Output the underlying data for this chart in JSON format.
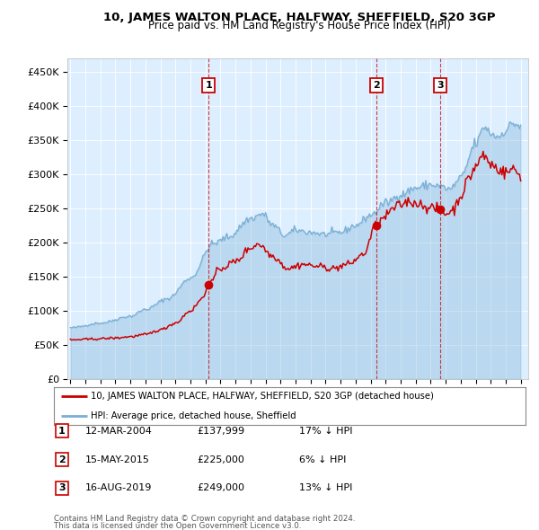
{
  "title": "10, JAMES WALTON PLACE, HALFWAY, SHEFFIELD, S20 3GP",
  "subtitle": "Price paid vs. HM Land Registry's House Price Index (HPI)",
  "legend_line1": "10, JAMES WALTON PLACE, HALFWAY, SHEFFIELD, S20 3GP (detached house)",
  "legend_line2": "HPI: Average price, detached house, Sheffield",
  "transactions": [
    {
      "num": 1,
      "date": "12-MAR-2004",
      "price": 137999,
      "pct": "17%",
      "dir": "↓"
    },
    {
      "num": 2,
      "date": "15-MAY-2015",
      "price": 225000,
      "pct": "6%",
      "dir": "↓"
    },
    {
      "num": 3,
      "date": "16-AUG-2019",
      "price": 249000,
      "pct": "13%",
      "dir": "↓"
    }
  ],
  "transaction_dates_decimal": [
    2004.21,
    2015.37,
    2019.62
  ],
  "transaction_prices": [
    137999,
    225000,
    249000
  ],
  "footer_line1": "Contains HM Land Registry data © Crown copyright and database right 2024.",
  "footer_line2": "This data is licensed under the Open Government Licence v3.0.",
  "red_color": "#cc0000",
  "blue_color": "#7aafd4",
  "bg_color": "#ddeeff",
  "ylim": [
    0,
    470000
  ],
  "yticks": [
    0,
    50000,
    100000,
    150000,
    200000,
    250000,
    300000,
    350000,
    400000,
    450000
  ],
  "xstart": 1994.8,
  "xend": 2025.5,
  "hpi_waypoints": {
    "1995.0": 75000,
    "1997.0": 82000,
    "1999.0": 92000,
    "2000.0": 102000,
    "2001.5": 118000,
    "2003.0": 148000,
    "2004.5": 198000,
    "2005.5": 208000,
    "2007.0": 235000,
    "2007.8": 242000,
    "2008.5": 225000,
    "2009.3": 210000,
    "2010.0": 218000,
    "2011.0": 215000,
    "2012.0": 212000,
    "2013.0": 215000,
    "2014.0": 225000,
    "2015.0": 240000,
    "2016.0": 258000,
    "2017.0": 270000,
    "2018.0": 280000,
    "2019.0": 285000,
    "2019.5": 283000,
    "2020.3": 278000,
    "2021.0": 295000,
    "2022.0": 345000,
    "2022.6": 370000,
    "2023.0": 360000,
    "2023.5": 355000,
    "2024.0": 365000,
    "2024.5": 375000,
    "2025.0": 370000
  },
  "prop_waypoints": {
    "1995.0": 57000,
    "1996.0": 58000,
    "1997.0": 59000,
    "1998.0": 60000,
    "1999.0": 62000,
    "2000.0": 65000,
    "2001.0": 72000,
    "2002.0": 82000,
    "2003.0": 100000,
    "2003.8": 118000,
    "2004.21": 137999,
    "2005.0": 162000,
    "2006.0": 172000,
    "2007.0": 192000,
    "2007.5": 198000,
    "2008.5": 180000,
    "2009.5": 162000,
    "2010.5": 168000,
    "2011.5": 165000,
    "2012.5": 162000,
    "2013.5": 168000,
    "2014.5": 182000,
    "2015.37": 225000,
    "2016.0": 238000,
    "2016.5": 250000,
    "2017.0": 255000,
    "2017.5": 260000,
    "2018.0": 258000,
    "2018.5": 255000,
    "2019.0": 250000,
    "2019.62": 249000,
    "2020.0": 242000,
    "2020.5": 248000,
    "2021.0": 268000,
    "2021.5": 292000,
    "2022.0": 312000,
    "2022.5": 328000,
    "2023.0": 315000,
    "2023.5": 308000,
    "2024.0": 302000,
    "2024.5": 308000,
    "2025.0": 298000
  }
}
